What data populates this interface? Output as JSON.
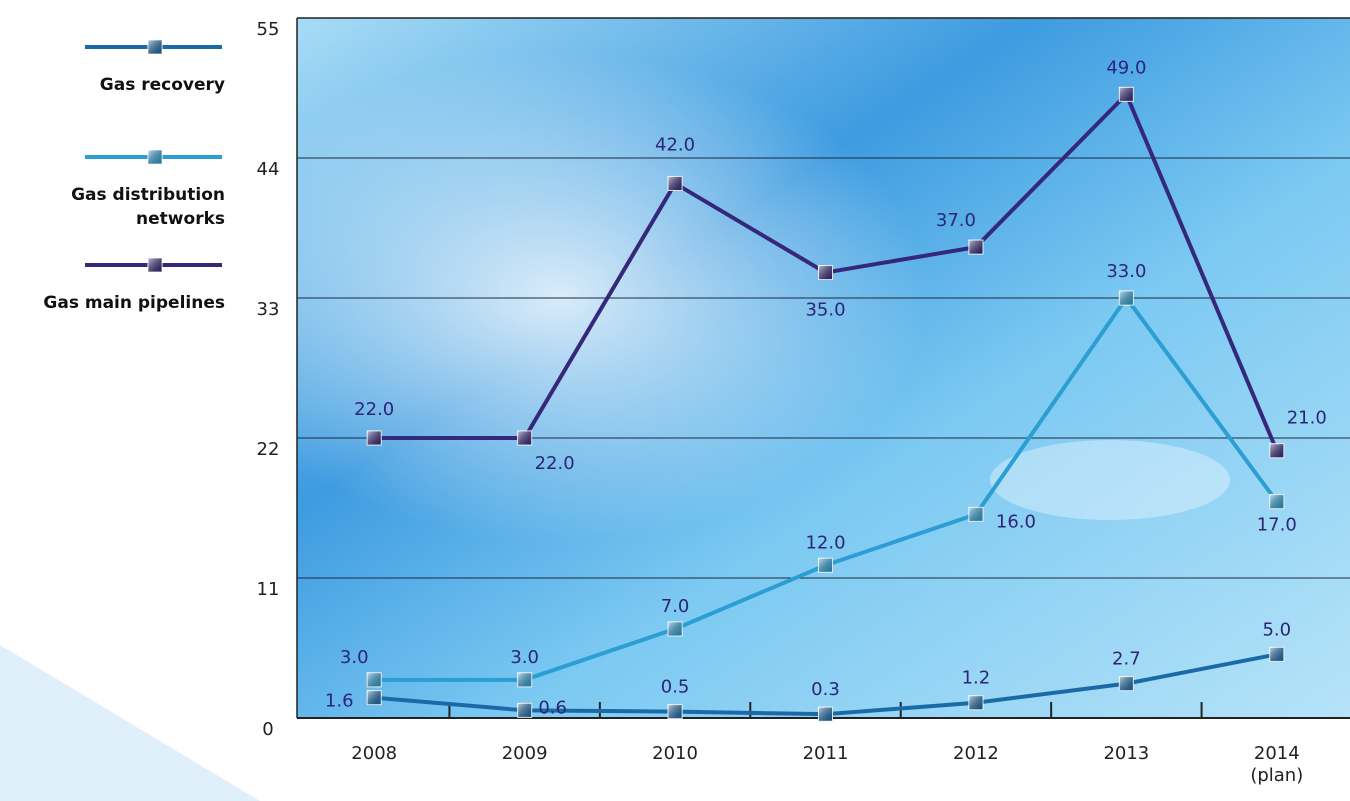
{
  "chart_data": {
    "type": "line",
    "categories": [
      "2008",
      "2009",
      "2010",
      "2011",
      "2012",
      "2013",
      "2014\n(plan)"
    ],
    "series": [
      {
        "name": "Gas recovery",
        "color": "#1b6aa8",
        "values": [
          1.6,
          0.6,
          0.5,
          0.3,
          1.2,
          2.7,
          5.0
        ],
        "value_labels": [
          "1.6",
          "0.6",
          "0.5",
          "0.3",
          "1.2",
          "2.7",
          "5.0"
        ]
      },
      {
        "name": "Gas distribution networks",
        "color": "#2b9ed3",
        "values": [
          3.0,
          3.0,
          7.0,
          12.0,
          16.0,
          33.0,
          17.0
        ],
        "value_labels": [
          "3.0",
          "3.0",
          "7.0",
          "12.0",
          "16.0",
          "33.0",
          "17.0"
        ]
      },
      {
        "name": "Gas main pipelines",
        "color": "#35287a",
        "values": [
          22,
          22,
          42,
          35,
          37,
          49,
          21
        ],
        "value_labels": [
          "22.0",
          "22.0",
          "42.0",
          "35.0",
          "37.0",
          "49.0",
          "21.0"
        ]
      }
    ],
    "ylim": [
      0,
      55
    ],
    "yticks": [
      0,
      11,
      22,
      33,
      44,
      55
    ],
    "grid": true,
    "legend": "left"
  }
}
